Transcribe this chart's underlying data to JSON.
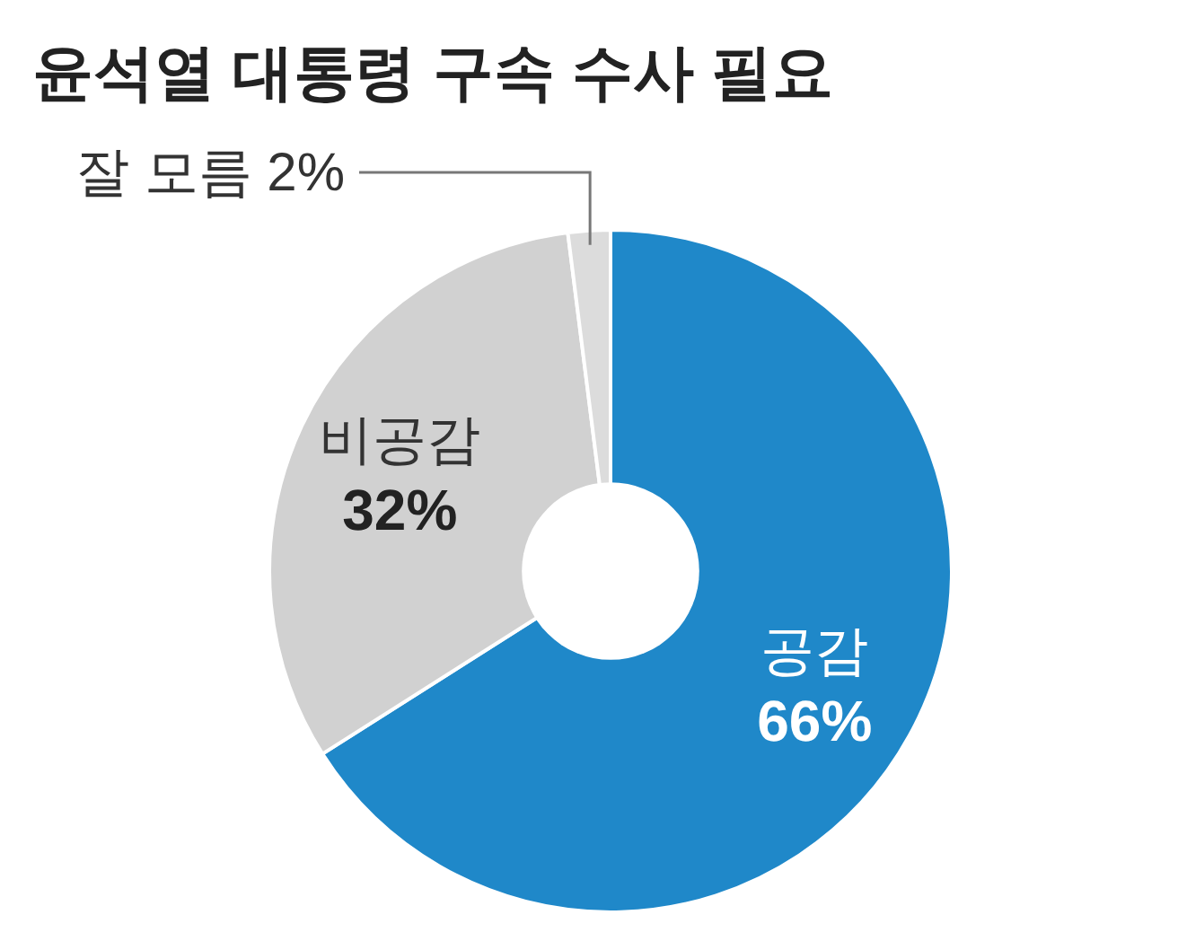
{
  "chart_data": {
    "type": "donut",
    "title": "윤석열 대통령 구속 수사 필요",
    "categories": [
      "공감",
      "비공감",
      "잘 모름"
    ],
    "values": [
      66,
      32,
      2
    ],
    "colors": [
      "#1f88c9",
      "#d1d1d1",
      "#dcdcdc"
    ],
    "value_labels": [
      "66%",
      "32%",
      "2%"
    ],
    "legend": false
  }
}
